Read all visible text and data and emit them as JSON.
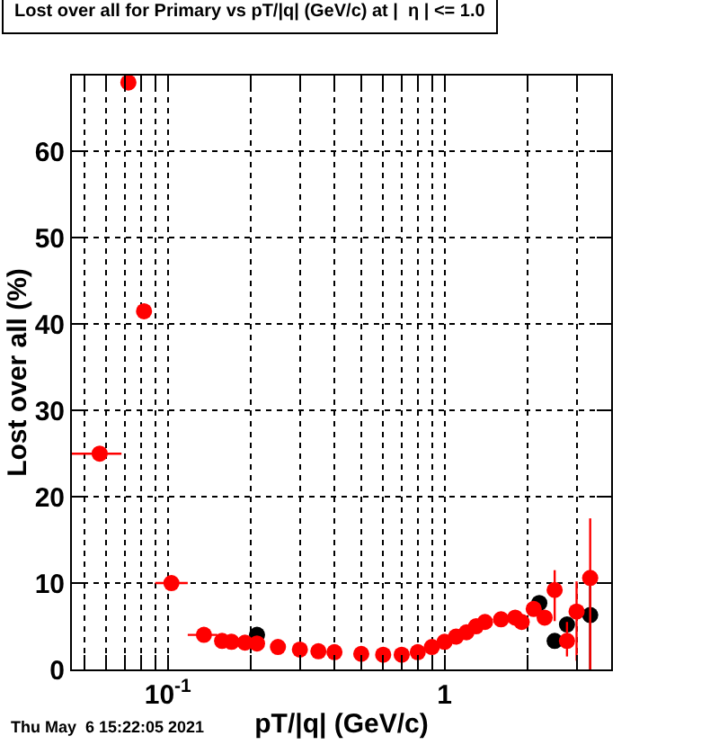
{
  "chart_data": {
    "type": "scatter",
    "title": "Lost over all for Primary vs pT/|q| (GeV/c) at |  η | <= 1.0",
    "xlabel": "pT/|q| (GeV/c)",
    "ylabel": "Lost over all (%)",
    "log": "x",
    "grid": true,
    "marker": "circle",
    "xlim": [
      0.045,
      4.0
    ],
    "ylim": [
      0,
      68.8
    ],
    "xticks": [
      {
        "value": 0.05,
        "label": null
      },
      {
        "value": 0.06,
        "label": null
      },
      {
        "value": 0.07,
        "label": null
      },
      {
        "value": 0.08,
        "label": null
      },
      {
        "value": 0.09,
        "label": null
      },
      {
        "value": 0.1,
        "label": "10$^{-1}$"
      },
      {
        "value": 0.2,
        "label": null
      },
      {
        "value": 0.3,
        "label": null
      },
      {
        "value": 0.4,
        "label": null
      },
      {
        "value": 0.5,
        "label": null
      },
      {
        "value": 0.6,
        "label": null
      },
      {
        "value": 0.7,
        "label": null
      },
      {
        "value": 0.8,
        "label": null
      },
      {
        "value": 0.9,
        "label": null
      },
      {
        "value": 1,
        "label": "1"
      },
      {
        "value": 2,
        "label": null
      },
      {
        "value": 3,
        "label": null
      },
      {
        "value": 4,
        "label": null
      }
    ],
    "yticks": [
      0,
      10,
      20,
      30,
      40,
      50,
      60
    ],
    "annotations": [
      "Thu May  6 15:22:05 2021"
    ],
    "series": [
      {
        "color": "#000000",
        "x": [
          0.21,
          2.2,
          2.5,
          2.77,
          3.36
        ],
        "values": [
          4.0,
          7.7,
          3.3,
          5.2,
          6.3
        ],
        "errors": [
          null,
          null,
          null,
          null,
          [
            0,
            11
          ]
        ]
      },
      {
        "color": "#ff0000",
        "x": [
          0.0567,
          0.072,
          0.082,
          0.103,
          0.135,
          0.157,
          0.17,
          0.19,
          0.21,
          0.25,
          0.3,
          0.35,
          0.4,
          0.5,
          0.6,
          0.7,
          0.8,
          0.9,
          1.0,
          1.1,
          1.2,
          1.3,
          1.4,
          1.6,
          1.8,
          1.9,
          2.1,
          2.3,
          2.5,
          2.77,
          3.0,
          3.36
        ],
        "values": [
          25,
          68,
          41.5,
          10,
          4,
          3.3,
          3.2,
          3.1,
          3.0,
          2.6,
          2.3,
          2.1,
          2.0,
          1.8,
          1.7,
          1.7,
          2.0,
          2.6,
          3.2,
          3.8,
          4.3,
          5.0,
          5.5,
          5.8,
          6.0,
          5.5,
          7.0,
          6.0,
          9.2,
          3.3,
          6.7,
          10.6
        ],
        "xerrors": [
          [
            0.045,
            0.068
          ],
          null,
          null,
          [
            0.09,
            0.118
          ],
          [
            0.118,
            0.151
          ],
          null,
          null,
          null,
          null,
          null,
          null,
          null,
          null,
          null,
          null,
          null,
          null,
          null,
          null,
          null,
          null,
          null,
          null,
          null,
          null,
          null,
          null,
          null,
          null,
          null,
          null,
          null
        ],
        "errors": [
          null,
          null,
          null,
          null,
          null,
          null,
          null,
          null,
          null,
          null,
          null,
          null,
          null,
          null,
          null,
          null,
          null,
          null,
          null,
          null,
          null,
          null,
          null,
          null,
          null,
          null,
          null,
          null,
          [
            5.6,
            11.5
          ],
          [
            1.5,
            5.5
          ],
          [
            1,
            10.2
          ],
          [
            0,
            17.5
          ]
        ]
      }
    ]
  }
}
